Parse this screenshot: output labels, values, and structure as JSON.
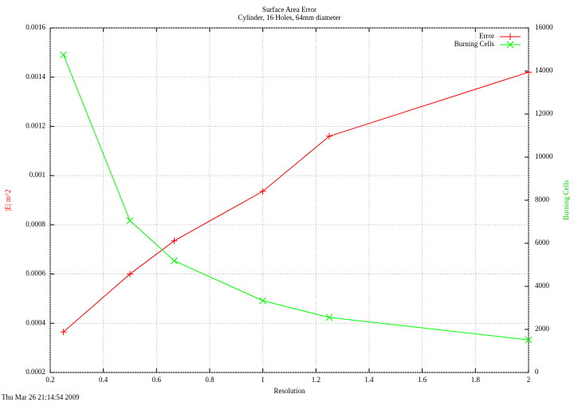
{
  "chart_data": {
    "type": "line",
    "title": "Surface Area Error",
    "subtitle": "Cylinder, 16 Holes, 64mm diameter",
    "x_label": "Resolution",
    "y_label": "|E| m^2",
    "y2_label": "Burning Cells",
    "timestamp": "Thu Mar 26 21:14:54 2009",
    "x": [
      0.25,
      0.5,
      0.6667,
      1,
      1.25,
      2
    ],
    "series": [
      {
        "name": "Error",
        "color": "#ff0000",
        "marker": "plus",
        "values": [
          0.000365,
          0.0006,
          0.000735,
          0.000936,
          0.00116,
          0.00142
        ]
      },
      {
        "name": "Burning Cells",
        "color": "#00ff00",
        "marker": "cross",
        "axis": "y2",
        "values": [
          14750,
          7050,
          5185,
          3333,
          2555,
          1520
        ]
      }
    ],
    "xlim": [
      0.2,
      2
    ],
    "xticks": [
      0.2,
      0.4,
      0.6,
      0.8,
      1,
      1.2,
      1.4,
      1.6,
      1.8,
      2
    ],
    "ylim": [
      0.0002,
      0.0016
    ],
    "yticks": [
      0.0002,
      0.0004,
      0.0006,
      0.0008,
      0.001,
      0.0012,
      0.0014,
      0.0016
    ],
    "y2lim": [
      0,
      16000
    ],
    "y2ticks": [
      0,
      2000,
      4000,
      6000,
      8000,
      10000,
      12000,
      14000,
      16000
    ],
    "grid": true,
    "legend": "top-right"
  }
}
